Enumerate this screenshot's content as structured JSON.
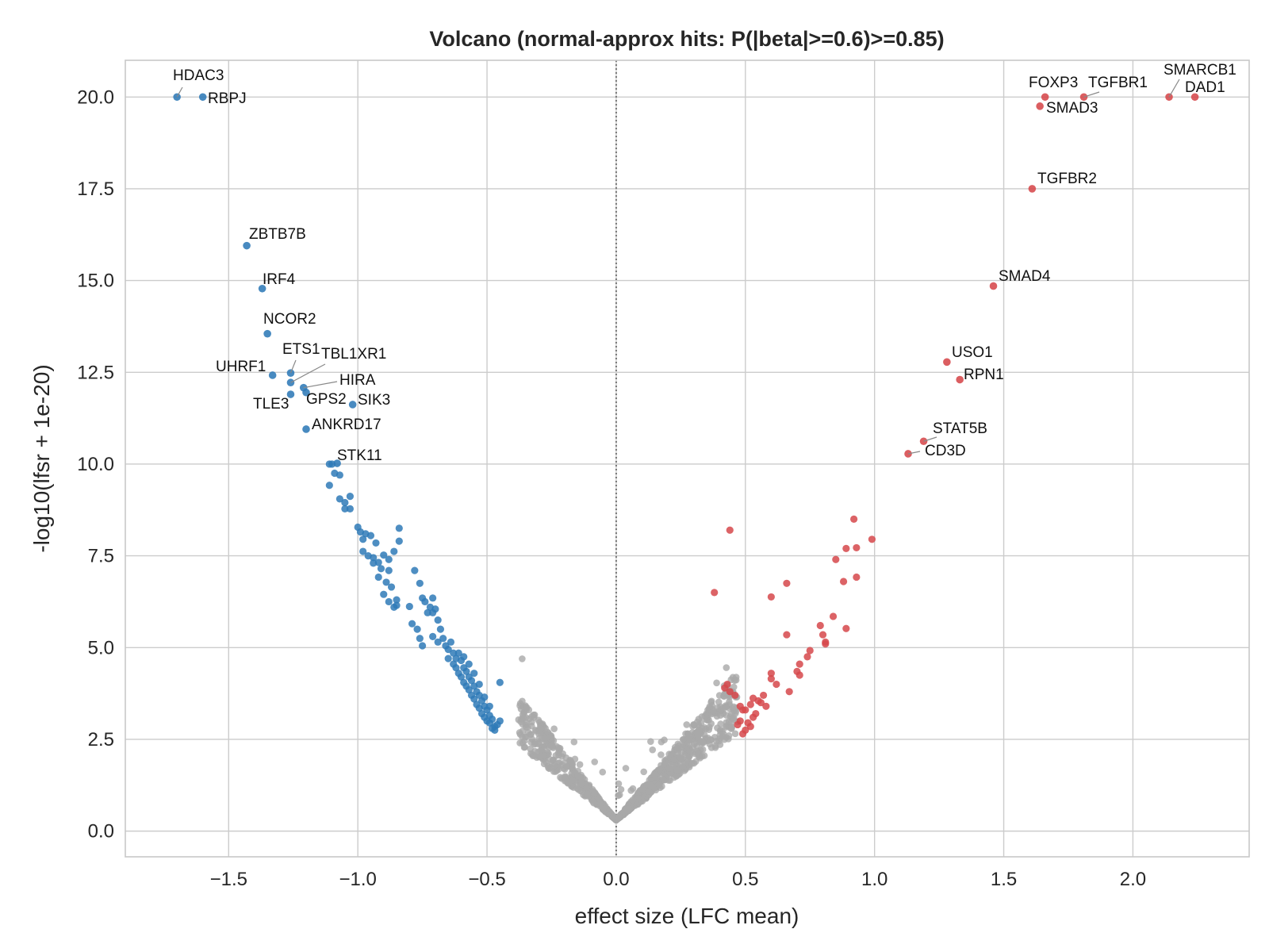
{
  "chart_data": {
    "type": "scatter",
    "title": "Volcano (normal-approx hits: P(|beta|>=0.6)>=0.85)",
    "xlabel": "effect size (LFC mean)",
    "ylabel": "-log10(lfsr + 1e-20)",
    "xlim": [
      -1.9,
      2.45
    ],
    "ylim": [
      -0.7,
      21.0
    ],
    "x_ticks": [
      -1.5,
      -1.0,
      -0.5,
      0.0,
      0.5,
      1.0,
      1.5,
      2.0
    ],
    "x_tick_labels": [
      "−1.5",
      "−1.0",
      "−0.5",
      "0.0",
      "0.5",
      "1.0",
      "1.5",
      "2.0"
    ],
    "y_ticks": [
      0.0,
      2.5,
      5.0,
      7.5,
      10.0,
      12.5,
      15.0,
      17.5,
      20.0
    ],
    "y_tick_labels": [
      "0.0",
      "2.5",
      "5.0",
      "7.5",
      "10.0",
      "12.5",
      "15.0",
      "17.5",
      "20.0"
    ],
    "grid": true,
    "reference_line_x": 0.0,
    "colors": {
      "down": "#2f7ab7",
      "up": "#d6484b",
      "ns": "#a9a9a9",
      "grid": "#cccccc",
      "axes": "#c8c8c8",
      "refline": "#777777"
    },
    "labeled_points": [
      {
        "gene": "HDAC3",
        "x": -1.7,
        "y": 20.0,
        "group": "down"
      },
      {
        "gene": "RBPJ",
        "x": -1.6,
        "y": 20.0,
        "group": "down"
      },
      {
        "gene": "ZBTB7B",
        "x": -1.43,
        "y": 15.95,
        "group": "down"
      },
      {
        "gene": "IRF4",
        "x": -1.37,
        "y": 14.78,
        "group": "down"
      },
      {
        "gene": "NCOR2",
        "x": -1.35,
        "y": 13.55,
        "group": "down"
      },
      {
        "gene": "UHRF1",
        "x": -1.33,
        "y": 12.42,
        "group": "down"
      },
      {
        "gene": "ETS1",
        "x": -1.26,
        "y": 12.48,
        "group": "down"
      },
      {
        "gene": "TBL1XR1",
        "x": -1.26,
        "y": 12.22,
        "group": "down"
      },
      {
        "gene": "HIRA",
        "x": -1.21,
        "y": 12.08,
        "group": "down"
      },
      {
        "gene": "GPS2",
        "x": -1.2,
        "y": 11.95,
        "group": "down"
      },
      {
        "gene": "TLE3",
        "x": -1.26,
        "y": 11.9,
        "group": "down"
      },
      {
        "gene": "SIK3",
        "x": -1.02,
        "y": 11.62,
        "group": "down"
      },
      {
        "gene": "ANKRD17",
        "x": -1.2,
        "y": 10.95,
        "group": "down"
      },
      {
        "gene": "STK11",
        "x": -1.08,
        "y": 10.02,
        "group": "down"
      },
      {
        "gene": "SMARCB1",
        "x": 2.14,
        "y": 20.0,
        "group": "up"
      },
      {
        "gene": "DAD1",
        "x": 2.24,
        "y": 20.0,
        "group": "up"
      },
      {
        "gene": "FOXP3",
        "x": 1.66,
        "y": 20.0,
        "group": "up"
      },
      {
        "gene": "TGFBR1",
        "x": 1.81,
        "y": 20.0,
        "group": "up"
      },
      {
        "gene": "SMAD3",
        "x": 1.64,
        "y": 19.75,
        "group": "up"
      },
      {
        "gene": "TGFBR2",
        "x": 1.61,
        "y": 17.5,
        "group": "up"
      },
      {
        "gene": "SMAD4",
        "x": 1.46,
        "y": 14.85,
        "group": "up"
      },
      {
        "gene": "USO1",
        "x": 1.28,
        "y": 12.78,
        "group": "up"
      },
      {
        "gene": "RPN1",
        "x": 1.33,
        "y": 12.3,
        "group": "up"
      },
      {
        "gene": "STAT5B",
        "x": 1.19,
        "y": 10.62,
        "group": "up"
      },
      {
        "gene": "CD3D",
        "x": 1.13,
        "y": 10.28,
        "group": "up"
      }
    ],
    "down_points": [
      [
        -1.11,
        10.0
      ],
      [
        -1.1,
        10.0
      ],
      [
        -1.11,
        9.42
      ],
      [
        -1.09,
        9.75
      ],
      [
        -1.07,
        9.7
      ],
      [
        -1.03,
        9.12
      ],
      [
        -1.07,
        9.05
      ],
      [
        -1.05,
        8.95
      ],
      [
        -1.05,
        8.78
      ],
      [
        -1.03,
        8.78
      ],
      [
        -1.0,
        8.28
      ],
      [
        -0.99,
        8.15
      ],
      [
        -0.98,
        7.95
      ],
      [
        -0.97,
        8.1
      ],
      [
        -0.95,
        8.05
      ],
      [
        -0.93,
        7.85
      ],
      [
        -0.98,
        7.62
      ],
      [
        -0.96,
        7.5
      ],
      [
        -0.94,
        7.45
      ],
      [
        -0.92,
        7.32
      ],
      [
        -0.9,
        7.52
      ],
      [
        -0.88,
        7.4
      ],
      [
        -0.86,
        7.62
      ],
      [
        -0.84,
        8.25
      ],
      [
        -0.84,
        7.9
      ],
      [
        -0.94,
        7.3
      ],
      [
        -0.91,
        7.15
      ],
      [
        -0.88,
        7.1
      ],
      [
        -0.92,
        6.92
      ],
      [
        -0.89,
        6.78
      ],
      [
        -0.87,
        6.65
      ],
      [
        -0.85,
        6.3
      ],
      [
        -0.9,
        6.45
      ],
      [
        -0.88,
        6.25
      ],
      [
        -0.86,
        6.1
      ],
      [
        -0.8,
        6.12
      ],
      [
        -0.85,
        6.15
      ],
      [
        -0.78,
        7.1
      ],
      [
        -0.76,
        6.75
      ],
      [
        -0.75,
        6.35
      ],
      [
        -0.74,
        6.25
      ],
      [
        -0.72,
        6.1
      ],
      [
        -0.71,
        6.35
      ],
      [
        -0.7,
        6.05
      ],
      [
        -0.73,
        5.95
      ],
      [
        -0.79,
        5.65
      ],
      [
        -0.77,
        5.5
      ],
      [
        -0.76,
        5.25
      ],
      [
        -0.75,
        5.05
      ],
      [
        -0.71,
        5.95
      ],
      [
        -0.69,
        5.75
      ],
      [
        -0.68,
        5.5
      ],
      [
        -0.71,
        5.3
      ],
      [
        -0.69,
        5.15
      ],
      [
        -0.67,
        5.25
      ],
      [
        -0.66,
        5.05
      ],
      [
        -0.65,
        4.95
      ],
      [
        -0.64,
        5.15
      ],
      [
        -0.63,
        4.85
      ],
      [
        -0.62,
        4.7
      ],
      [
        -0.61,
        4.85
      ],
      [
        -0.6,
        4.65
      ],
      [
        -0.62,
        4.45
      ],
      [
        -0.61,
        4.3
      ],
      [
        -0.59,
        4.45
      ],
      [
        -0.58,
        4.35
      ],
      [
        -0.6,
        4.2
      ],
      [
        -0.59,
        4.05
      ],
      [
        -0.57,
        4.2
      ],
      [
        -0.56,
        4.1
      ],
      [
        -0.58,
        3.95
      ],
      [
        -0.57,
        3.85
      ],
      [
        -0.55,
        3.95
      ],
      [
        -0.54,
        3.8
      ],
      [
        -0.56,
        3.7
      ],
      [
        -0.55,
        3.6
      ],
      [
        -0.53,
        3.7
      ],
      [
        -0.52,
        3.55
      ],
      [
        -0.54,
        3.45
      ],
      [
        -0.53,
        3.35
      ],
      [
        -0.51,
        3.4
      ],
      [
        -0.5,
        3.3
      ],
      [
        -0.52,
        3.2
      ],
      [
        -0.51,
        3.1
      ],
      [
        -0.49,
        3.15
      ],
      [
        -0.5,
        3.0
      ],
      [
        -0.48,
        3.05
      ],
      [
        -0.49,
        2.95
      ],
      [
        -0.47,
        2.85
      ],
      [
        -0.46,
        2.9
      ],
      [
        -0.48,
        2.8
      ],
      [
        -0.47,
        2.75
      ],
      [
        -0.45,
        3.0
      ],
      [
        -0.45,
        4.05
      ],
      [
        -0.63,
        4.55
      ],
      [
        -0.65,
        4.7
      ],
      [
        -0.59,
        4.75
      ],
      [
        -0.57,
        4.55
      ],
      [
        -0.55,
        4.3
      ],
      [
        -0.53,
        4.0
      ],
      [
        -0.51,
        3.65
      ],
      [
        -0.49,
        3.4
      ]
    ],
    "up_points": [
      [
        0.44,
        8.2
      ],
      [
        0.38,
        6.5
      ],
      [
        0.92,
        8.5
      ],
      [
        0.99,
        7.95
      ],
      [
        0.93,
        7.72
      ],
      [
        0.89,
        7.7
      ],
      [
        0.85,
        7.4
      ],
      [
        0.93,
        6.92
      ],
      [
        0.88,
        6.8
      ],
      [
        0.66,
        6.75
      ],
      [
        0.6,
        6.38
      ],
      [
        0.84,
        5.85
      ],
      [
        0.89,
        5.52
      ],
      [
        0.79,
        5.6
      ],
      [
        0.8,
        5.35
      ],
      [
        0.81,
        5.15
      ],
      [
        0.81,
        5.1
      ],
      [
        0.75,
        4.92
      ],
      [
        0.74,
        4.75
      ],
      [
        0.71,
        4.55
      ],
      [
        0.66,
        5.35
      ],
      [
        0.6,
        4.3
      ],
      [
        0.6,
        4.15
      ],
      [
        0.7,
        4.35
      ],
      [
        0.71,
        4.25
      ],
      [
        0.67,
        3.8
      ],
      [
        0.62,
        4.0
      ],
      [
        0.57,
        3.7
      ],
      [
        0.55,
        3.55
      ],
      [
        0.53,
        3.62
      ],
      [
        0.52,
        3.45
      ],
      [
        0.5,
        3.3
      ],
      [
        0.49,
        3.3
      ],
      [
        0.48,
        3.0
      ],
      [
        0.53,
        3.1
      ],
      [
        0.54,
        3.2
      ],
      [
        0.51,
        2.95
      ],
      [
        0.52,
        2.85
      ],
      [
        0.5,
        2.75
      ],
      [
        0.49,
        2.65
      ],
      [
        0.47,
        2.9
      ],
      [
        0.46,
        3.7
      ],
      [
        0.43,
        4.0
      ],
      [
        0.42,
        3.9
      ],
      [
        0.44,
        3.8
      ],
      [
        0.48,
        3.4
      ],
      [
        0.56,
        3.5
      ],
      [
        0.58,
        3.4
      ]
    ]
  }
}
